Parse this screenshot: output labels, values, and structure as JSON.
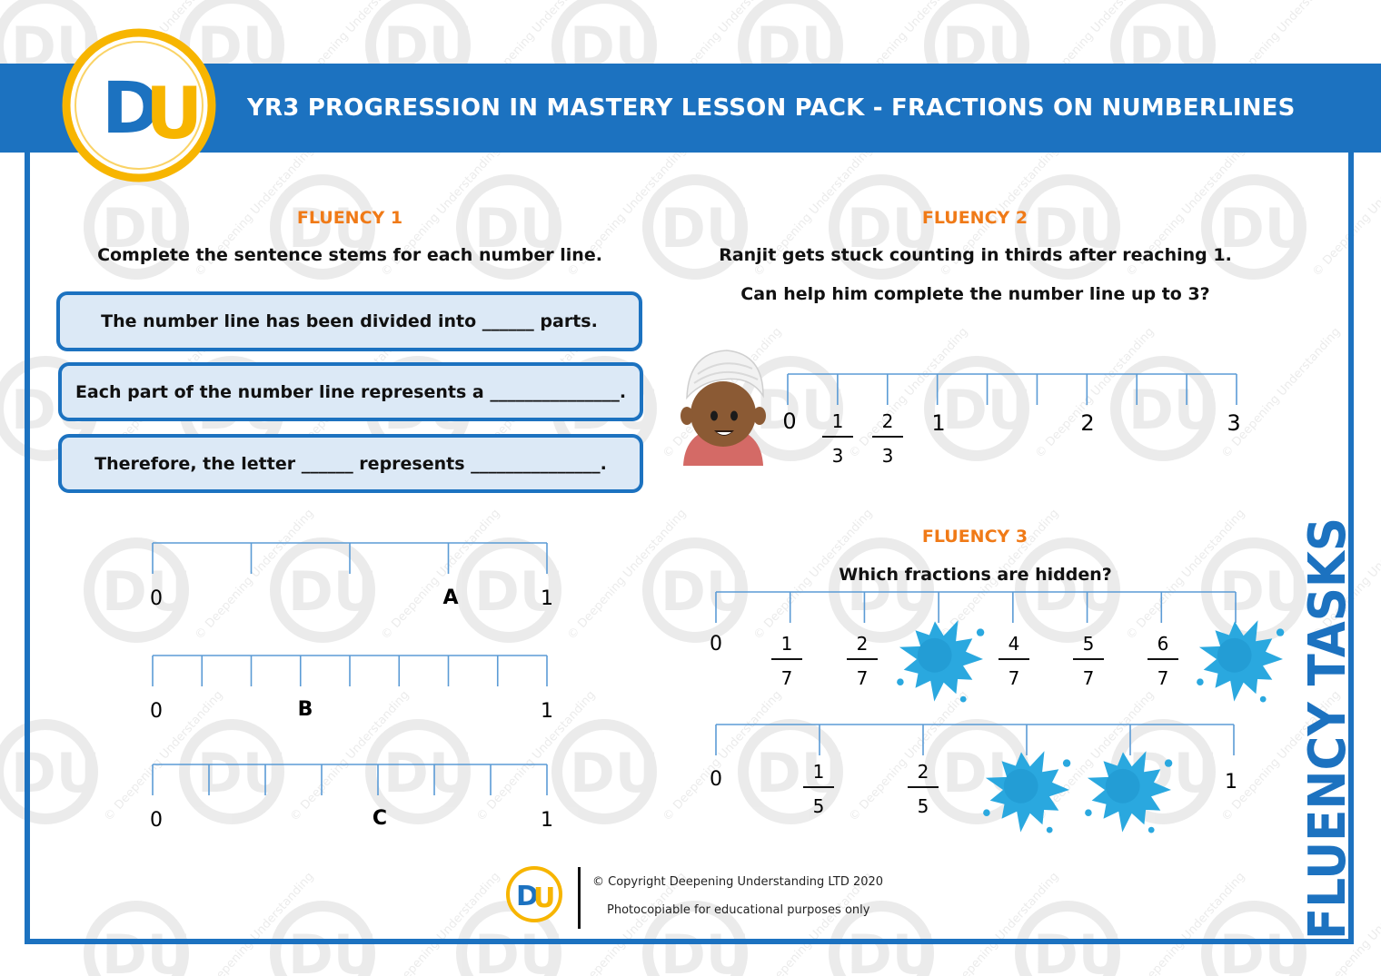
{
  "header": {
    "title": "YR3 PROGRESSION IN MASTERY LESSON PACK - FRACTIONS ON NUMBERLINES",
    "logo_text": "DU",
    "side_title": "FLUENCY TASKS"
  },
  "colors": {
    "brand_blue": "#1c72c0",
    "brand_yellow": "#f7b500",
    "heading_orange": "#f07a17",
    "stem_fill": "#dce9f6",
    "splat": "#2aa8df"
  },
  "watermark": {
    "logo": "DU",
    "text": "© Deepening Understanding"
  },
  "fluency1": {
    "heading": "FLUENCY 1",
    "instruction": "Complete the sentence stems for each number line.",
    "stems": [
      "The number line has been divided into ______ parts.",
      "Each part of the number line represents a _______________.",
      "Therefore, the letter ______ represents _______________."
    ],
    "lines": [
      {
        "start": "0",
        "end": "1",
        "parts": 4,
        "letter": "A",
        "letter_at": 3
      },
      {
        "start": "0",
        "end": "1",
        "parts": 8,
        "letter": "B",
        "letter_at": 3
      },
      {
        "start": "0",
        "end": "1",
        "parts": 7,
        "letter": "C",
        "letter_at": 4
      }
    ]
  },
  "fluency2": {
    "heading": "FLUENCY 2",
    "line1": "Ranjit gets stuck counting in thirds after reaching 1.",
    "line2": "Can help him complete the number line up to 3?",
    "labels": {
      "zero": "0",
      "one_third": {
        "num": "1",
        "den": "3"
      },
      "two_thirds": {
        "num": "2",
        "den": "3"
      },
      "one": "1",
      "two": "2",
      "three": "3"
    }
  },
  "fluency3": {
    "heading": "FLUENCY 3",
    "question": "Which fractions are hidden?",
    "sevenths": {
      "start": "0",
      "shown": [
        {
          "num": "1",
          "den": "7"
        },
        {
          "num": "2",
          "den": "7"
        },
        {
          "num": "4",
          "den": "7"
        },
        {
          "num": "5",
          "den": "7"
        },
        {
          "num": "6",
          "den": "7"
        }
      ]
    },
    "fifths": {
      "start": "0",
      "end": "1",
      "shown": [
        {
          "num": "1",
          "den": "5"
        },
        {
          "num": "2",
          "den": "5"
        }
      ]
    }
  },
  "footer": {
    "logo_text": "DU",
    "copyright": "© Copyright Deepening Understanding LTD 2020",
    "note": "Photocopiable for educational purposes only"
  }
}
